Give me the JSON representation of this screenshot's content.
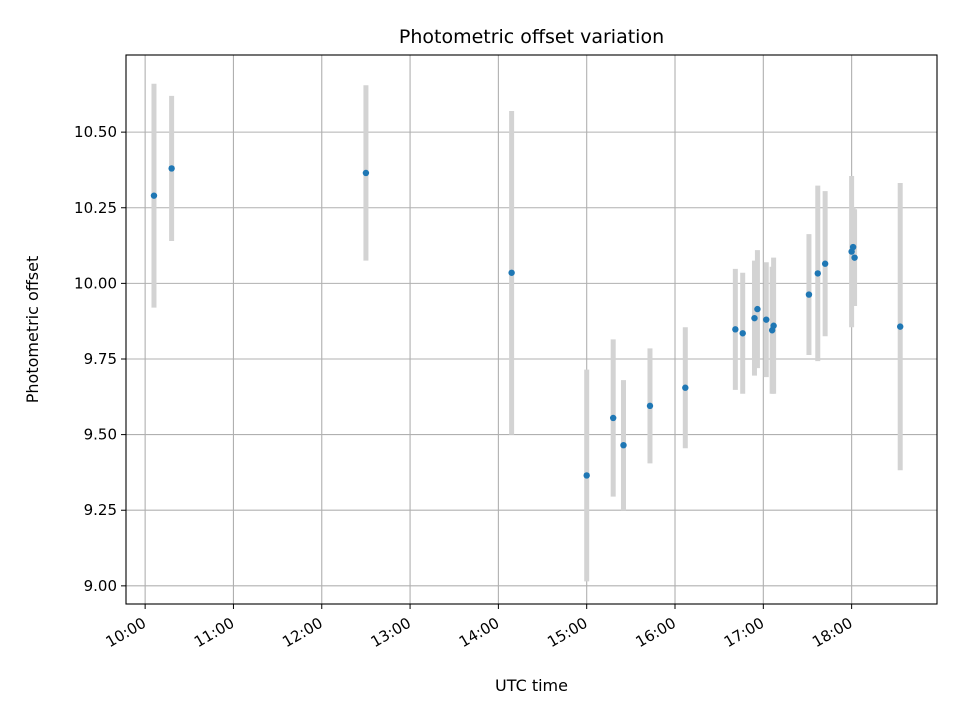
{
  "chart_data": {
    "type": "scatter",
    "title": "Photometric offset variation",
    "xlabel": "UTC time",
    "ylabel": "Photometric offset",
    "x_unit": "UTC clock time (HH:MM)",
    "xlim": [
      "09:47",
      "18:58"
    ],
    "ylim": [
      8.94,
      10.755
    ],
    "grid": true,
    "legend": "none",
    "x_ticks": [
      "10:00",
      "11:00",
      "12:00",
      "13:00",
      "14:00",
      "15:00",
      "16:00",
      "17:00",
      "18:00"
    ],
    "y_ticks": [
      "9.00",
      "9.25",
      "9.50",
      "9.75",
      "10.00",
      "10.25",
      "10.50"
    ],
    "colors": {
      "point": "#1f77b4",
      "errorbar": "#d3d3d3",
      "grid": "#b0b0b0",
      "axes": "#000000"
    },
    "series": [
      {
        "points": [
          {
            "x": "10:06",
            "y": 10.29,
            "err": 0.37
          },
          {
            "x": "10:18",
            "y": 10.38,
            "err": 0.24
          },
          {
            "x": "12:30",
            "y": 10.365,
            "err": 0.29
          },
          {
            "x": "14:09",
            "y": 10.035,
            "err": 0.535
          },
          {
            "x": "15:00",
            "y": 9.365,
            "err": 0.35
          },
          {
            "x": "15:18",
            "y": 9.555,
            "err": 0.26
          },
          {
            "x": "15:25",
            "y": 9.465,
            "err": 0.215
          },
          {
            "x": "15:43",
            "y": 9.595,
            "err": 0.19
          },
          {
            "x": "16:07",
            "y": 9.655,
            "err": 0.2
          },
          {
            "x": "16:41",
            "y": 9.848,
            "err": 0.2
          },
          {
            "x": "16:46",
            "y": 9.835,
            "err": 0.2
          },
          {
            "x": "16:54",
            "y": 9.885,
            "err": 0.19
          },
          {
            "x": "16:56",
            "y": 9.915,
            "err": 0.195
          },
          {
            "x": "17:02",
            "y": 9.88,
            "err": 0.19
          },
          {
            "x": "17:06",
            "y": 9.845,
            "err": 0.21
          },
          {
            "x": "17:07",
            "y": 9.86,
            "err": 0.225
          },
          {
            "x": "17:31",
            "y": 9.963,
            "err": 0.2
          },
          {
            "x": "17:37",
            "y": 10.033,
            "err": 0.29
          },
          {
            "x": "17:42",
            "y": 10.065,
            "err": 0.24
          },
          {
            "x": "18:00",
            "y": 10.105,
            "err": 0.25
          },
          {
            "x": "18:01",
            "y": 10.12,
            "err": 0.13
          },
          {
            "x": "18:02",
            "y": 10.085,
            "err": 0.16
          },
          {
            "x": "18:33",
            "y": 9.857,
            "err": 0.475
          }
        ]
      }
    ]
  }
}
